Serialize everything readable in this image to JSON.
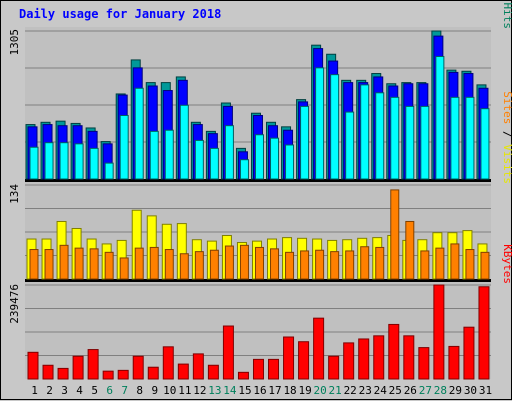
{
  "chart_data": {
    "type": "bar",
    "title": "Daily usage for January 2018",
    "x": [
      "1",
      "2",
      "3",
      "4",
      "5",
      "6",
      "7",
      "8",
      "9",
      "10",
      "11",
      "12",
      "13",
      "14",
      "15",
      "16",
      "17",
      "18",
      "19",
      "20",
      "21",
      "22",
      "23",
      "24",
      "25",
      "26",
      "27",
      "28",
      "29",
      "30",
      "31"
    ],
    "weekend_days": [
      6,
      7,
      13,
      14,
      20,
      21,
      27,
      28
    ],
    "colors": {
      "background": "#c8c8c8",
      "panel": "#c0c0c0",
      "gridline": "#808080",
      "title": "#0000ff",
      "weekday_label": "#000000",
      "weekend_label": "#00805c",
      "hits": "#009999",
      "files": "#0000ff",
      "pages": "#00ffff",
      "visits": "#ffff00",
      "sites": "#ff8000",
      "kbytes": "#ff0000",
      "separator": "#000000"
    },
    "panels": [
      {
        "ymax_label": "1305",
        "ylim": [
          0,
          1305
        ],
        "legend": [
          {
            "text": "Hits",
            "color": "#00805c"
          },
          {
            "text": " / ",
            "color": "#000000"
          },
          {
            "text": "Files",
            "color": "#0000ff"
          },
          {
            "text": " / ",
            "color": "#000000"
          },
          {
            "text": "Pages",
            "color": "#00e5e5"
          }
        ],
        "series": [
          {
            "name": "Hits",
            "values": [
              480,
              500,
              510,
              490,
              450,
              330,
              750,
              1050,
              850,
              850,
              900,
              500,
              420,
              670,
              270,
              580,
              500,
              460,
              700,
              1180,
              1100,
              870,
              870,
              930,
              840,
              850,
              850,
              1305,
              960,
              950,
              830
            ]
          },
          {
            "name": "Files",
            "values": [
              460,
              480,
              470,
              470,
              420,
              310,
              740,
              980,
              820,
              780,
              870,
              480,
              400,
              640,
              240,
              560,
              470,
              430,
              680,
              1150,
              1040,
              850,
              850,
              900,
              820,
              840,
              840,
              1260,
              940,
              930,
              800
            ]
          },
          {
            "name": "Pages",
            "values": [
              280,
              320,
              320,
              310,
              270,
              140,
              560,
              800,
              420,
              430,
              650,
              340,
              270,
              470,
              170,
              390,
              360,
              300,
              640,
              980,
              920,
              590,
              830,
              760,
              720,
              640,
              640,
              1080,
              720,
              720,
              620
            ]
          }
        ]
      },
      {
        "ymax_label": "134",
        "ylim": [
          0,
          134
        ],
        "legend": [
          {
            "text": "Visits",
            "color": "#e6e600"
          },
          {
            "text": " / ",
            "color": "#000000"
          },
          {
            "text": "Sites",
            "color": "#ff8000"
          }
        ],
        "series": [
          {
            "name": "Visits",
            "values": [
              57,
              57,
              82,
              72,
              57,
              50,
              55,
              98,
              90,
              78,
              79,
              56,
              54,
              62,
              52,
              54,
              57,
              59,
              58,
              57,
              55,
              56,
              58,
              59,
              62,
              55,
              56,
              66,
              66,
              69,
              50
            ]
          },
          {
            "name": "Sites",
            "values": [
              42,
              42,
              48,
              44,
              43,
              38,
              30,
              44,
              45,
              42,
              36,
              39,
              41,
              47,
              48,
              45,
              43,
              38,
              40,
              41,
              39,
              40,
              46,
              45,
              127,
              82,
              40,
              44,
              50,
              42,
              38
            ]
          }
        ]
      },
      {
        "ymax_label": "239476",
        "ylim": [
          0,
          239476
        ],
        "legend": [
          {
            "text": "KBytes",
            "color": "#ff0000"
          }
        ],
        "series": [
          {
            "name": "KBytes",
            "values": [
              68000,
              35000,
              27000,
              58000,
              75000,
              20000,
              22000,
              58000,
              30000,
              82000,
              38000,
              64000,
              35000,
              135000,
              17000,
              50000,
              50000,
              107000,
              95000,
              155000,
              58000,
              92000,
              102000,
              110000,
              139000,
              110000,
              80000,
              239476,
              83000,
              132000,
              235000
            ]
          }
        ]
      }
    ]
  }
}
